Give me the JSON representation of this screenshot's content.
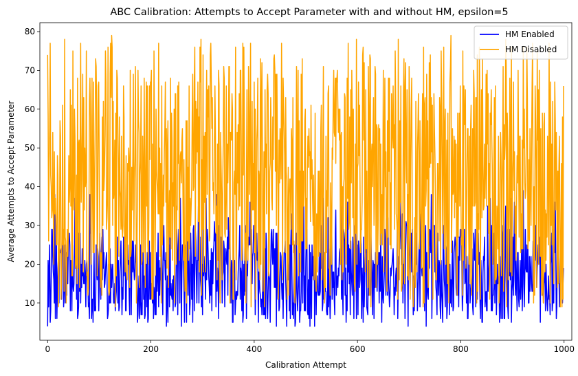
{
  "chart_data": {
    "type": "line",
    "title": "ABC Calibration: Attempts to Accept Parameter with and without HM, epsilon=5",
    "xlabel": "Calibration Attempt",
    "ylabel": "Average Attempts to Accept Parameter",
    "xlim": [
      -15,
      1015
    ],
    "ylim": [
      0.4,
      82.3
    ],
    "xticks": [
      0,
      200,
      400,
      600,
      800,
      1000
    ],
    "yticks": [
      10,
      20,
      30,
      40,
      50,
      60,
      70,
      80
    ],
    "legend_position": "top-right",
    "n_points": 1000,
    "series": [
      {
        "name": "HM Enabled",
        "color": "#0000ff",
        "range": [
          4,
          39
        ],
        "typical": [
          6,
          30
        ]
      },
      {
        "name": "HM Disabled",
        "color": "#ffa500",
        "range": [
          9,
          79
        ],
        "typical": [
          12,
          72
        ]
      }
    ]
  }
}
